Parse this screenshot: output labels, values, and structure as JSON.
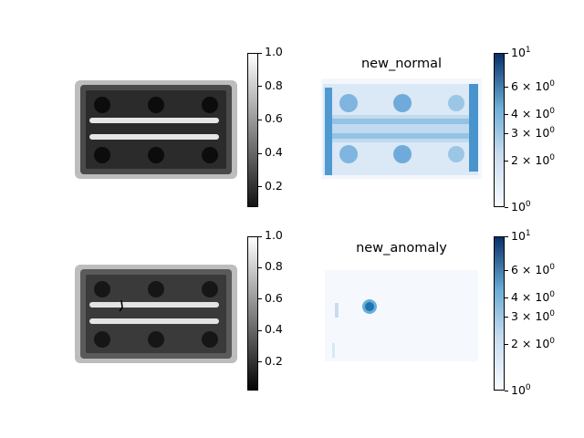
{
  "chart_data": [
    {
      "type": "heatmap",
      "role": "input image (normal)",
      "title": "",
      "colormap": "gray",
      "clim": [
        0.08,
        1.0
      ],
      "colorbar_ticks": [
        "0.2",
        "0.4",
        "0.6",
        "0.8",
        "1.0"
      ],
      "colorbar_tick_values": [
        0.2,
        0.4,
        0.6,
        0.8,
        1.0
      ],
      "content": {
        "holes_top_row": 3,
        "holes_bottom_row": 3,
        "bars": 2,
        "defect": false
      }
    },
    {
      "type": "heatmap",
      "role": "anomaly map (normal)",
      "title": "new_normal",
      "colormap": "Blues",
      "scale": "log",
      "clim": [
        1,
        10
      ],
      "colorbar_ticks": [
        "10^0",
        "2×10^0",
        "3×10^0",
        "4×10^0",
        "6×10^0",
        "10^1"
      ],
      "colorbar_tick_values": [
        1,
        2,
        3,
        4,
        6,
        10
      ]
    },
    {
      "type": "heatmap",
      "role": "input image (anomaly)",
      "title": "",
      "colormap": "gray",
      "clim": [
        0.02,
        1.0
      ],
      "colorbar_ticks": [
        "0.2",
        "0.4",
        "0.6",
        "0.8",
        "1.0"
      ],
      "colorbar_tick_values": [
        0.2,
        0.4,
        0.6,
        0.8,
        1.0
      ],
      "content": {
        "holes_top_row": 3,
        "holes_bottom_row": 3,
        "bars": 2,
        "defect": true
      }
    },
    {
      "type": "heatmap",
      "role": "anomaly map (anomaly)",
      "title": "new_anomaly",
      "colormap": "Blues",
      "scale": "log",
      "clim": [
        1,
        10
      ],
      "colorbar_ticks": [
        "10^0",
        "2×10^0",
        "3×10^0",
        "4×10^0",
        "6×10^0",
        "10^1"
      ],
      "colorbar_tick_values": [
        1,
        2,
        3,
        4,
        6,
        10
      ]
    }
  ]
}
